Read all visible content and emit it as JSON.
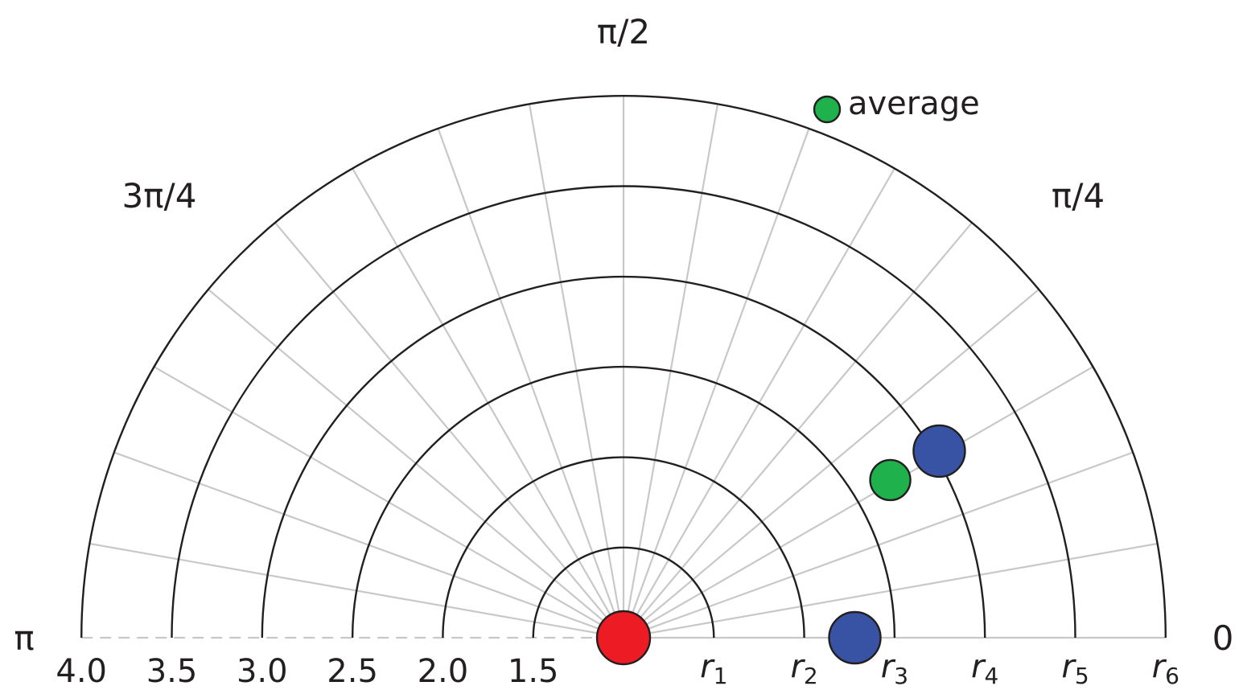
{
  "chart_data": {
    "type": "scatter",
    "coordinate_system": "polar-semicircle",
    "angular_labels": [
      {
        "angle": 0,
        "text": "0"
      },
      {
        "angle": 0.7854,
        "text": "π/4"
      },
      {
        "angle": 1.5708,
        "text": "π/2"
      },
      {
        "angle": 2.3562,
        "text": "3π/4"
      },
      {
        "angle": 3.1416,
        "text": "π"
      }
    ],
    "rings": [
      1,
      2,
      3,
      4,
      5,
      6
    ],
    "radial_right_labels": [
      {
        "r": 1,
        "base": "r",
        "sub": "1"
      },
      {
        "r": 2,
        "base": "r",
        "sub": "2"
      },
      {
        "r": 3,
        "base": "r",
        "sub": "3"
      },
      {
        "r": 4,
        "base": "r",
        "sub": "4"
      },
      {
        "r": 5,
        "base": "r",
        "sub": "5"
      },
      {
        "r": 6,
        "base": "r",
        "sub": "6"
      }
    ],
    "radial_left_labels": [
      {
        "r": 1,
        "text": "1.5"
      },
      {
        "r": 2,
        "text": "2.0"
      },
      {
        "r": 3,
        "text": "2.5"
      },
      {
        "r": 4,
        "text": "3.0"
      },
      {
        "r": 5,
        "text": "3.5"
      },
      {
        "r": 6,
        "text": "4.0"
      }
    ],
    "spokes_deg": [
      0,
      10,
      20,
      30,
      40,
      50,
      60,
      70,
      80,
      90,
      100,
      110,
      120,
      130,
      140,
      150,
      160,
      170
    ],
    "points": [
      {
        "group": "origin",
        "r": 0,
        "theta_deg": 0,
        "color": "#ed1c24"
      },
      {
        "group": "blue",
        "r": 2.56,
        "theta_deg": 0,
        "color": "#3953a4"
      },
      {
        "group": "blue",
        "r": 4.06,
        "theta_deg": 30.6,
        "color": "#3953a4"
      },
      {
        "group": "average",
        "r": 3.43,
        "theta_deg": 30.6,
        "color": "#1fb14b"
      }
    ],
    "legend": {
      "text": "average",
      "color": "#1fb14b",
      "position": "top-right"
    },
    "grid": true
  }
}
